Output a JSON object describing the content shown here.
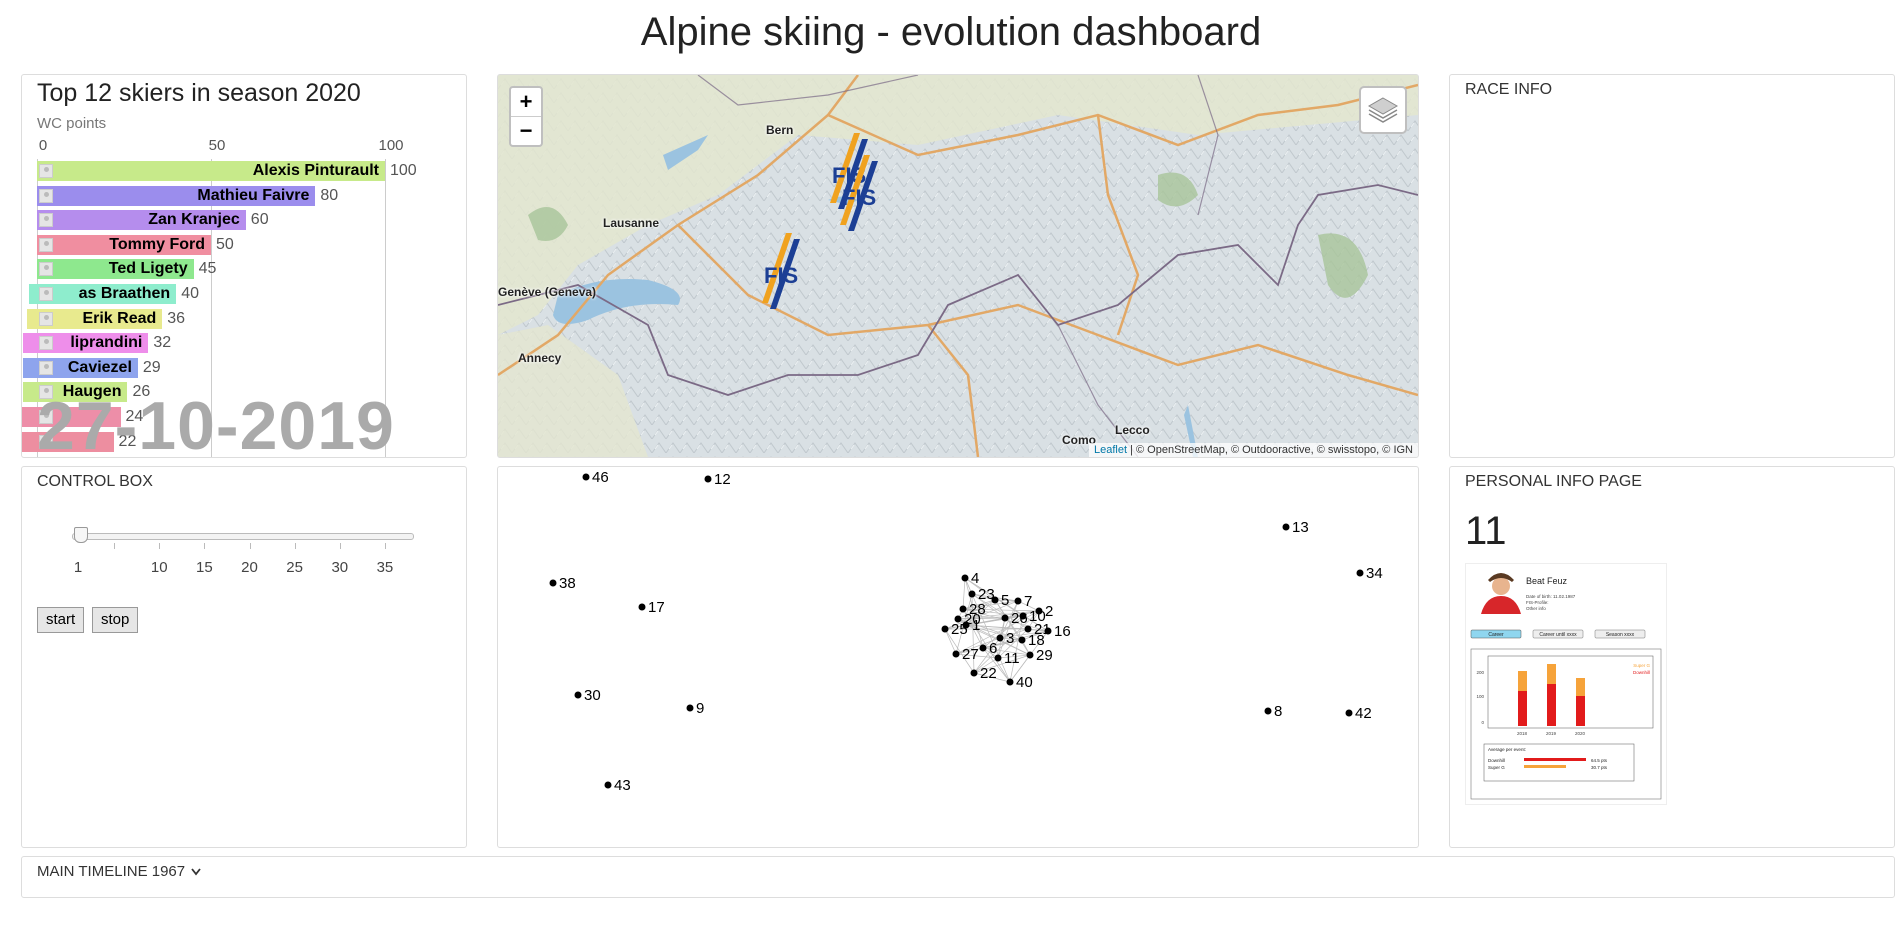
{
  "page": {
    "title": "Alpine skiing - evolution dashboard"
  },
  "bar_chart": {
    "title": "Top 12 skiers in season 2020",
    "axis_label": "WC points",
    "ticks": [
      "0",
      "50",
      "100"
    ],
    "date": "27-10-2019",
    "chart_data": {
      "type": "bar",
      "orientation": "horizontal",
      "title": "Top 12 skiers in season 2020",
      "xlabel": "WC points",
      "xlim": [
        0,
        100
      ],
      "categories": [
        "Alexis Pinturault",
        "Mathieu Faivre",
        "Zan Kranjec",
        "Tommy Ford",
        "Ted Ligety",
        "Lucas Braathen",
        "Erik Read",
        "Giovanni Borsotti Filippo Aliprandini",
        "Gino Caviezel",
        "Leif Kristian Haugen",
        "",
        ""
      ],
      "labels_visible": [
        "Alexis Pinturault",
        "Mathieu Faivre",
        "Zan Kranjec",
        "Tommy Ford",
        "Ted Ligety",
        "as Braathen",
        "Erik Read",
        "liprandini",
        "Caviezel",
        "Haugen",
        "",
        ""
      ],
      "values": [
        100,
        80,
        60,
        50,
        45,
        40,
        36,
        32,
        29,
        26,
        24,
        22
      ],
      "colors": [
        "#c7ea8a",
        "#9b8ded",
        "#b58ded",
        "#f08ea0",
        "#8ee88e",
        "#8eedcd",
        "#e8ea8e",
        "#ee8eea",
        "#8ea4ed",
        "#c7ea8a",
        "#ed8ea8",
        "#ed8ea0"
      ]
    }
  },
  "map": {
    "zoom_in": "+",
    "zoom_out": "−",
    "cities": [
      "Bern",
      "Lausanne",
      "Genève (Geneva)",
      "Annecy",
      "Como",
      "Lecco"
    ],
    "attribution_leaflet": "Leaflet",
    "attribution_rest": "| © OpenStreetMap, © Outdooractive, © swisstopo, © IGN",
    "marker_label": "FIS"
  },
  "race_info": {
    "title": "RACE INFO"
  },
  "control_box": {
    "title": "CONTROL BOX",
    "slider_labels": [
      "1",
      "10",
      "15",
      "20",
      "25",
      "30",
      "35"
    ],
    "slider_value": 1,
    "start_label": "start",
    "stop_label": "stop"
  },
  "graph": {
    "nodes": [
      "46",
      "12",
      "13",
      "34",
      "38",
      "17",
      "4",
      "23",
      "5",
      "7",
      "28",
      "2",
      "20",
      "26",
      "10",
      "25",
      "1",
      "21",
      "16",
      "3",
      "18",
      "27",
      "6",
      "11",
      "29",
      "22",
      "40",
      "30",
      "9",
      "8",
      "42",
      "43"
    ]
  },
  "personal_info": {
    "title": "PERSONAL INFO PAGE",
    "number": "11",
    "card": {
      "name": "Beat Feuz",
      "dob": "Date of birth: 11.02.1987",
      "fis": "FIS-Profile:",
      "other": "Other info",
      "tabs": [
        "Career",
        "Career until xxxx",
        "Season xxxx"
      ],
      "years": [
        "2018",
        "2019",
        "2020"
      ],
      "y_ticks": [
        "200",
        "100",
        "0"
      ],
      "legend": [
        "Super G",
        "Downhill"
      ],
      "avg_title": "Average per event:",
      "avg_rows": [
        {
          "label": "Downhill",
          "value": "64.5 pts"
        },
        {
          "label": "Super G",
          "value": "30.7 pts"
        }
      ]
    }
  },
  "timeline": {
    "label": "MAIN TIMELINE 1967"
  }
}
